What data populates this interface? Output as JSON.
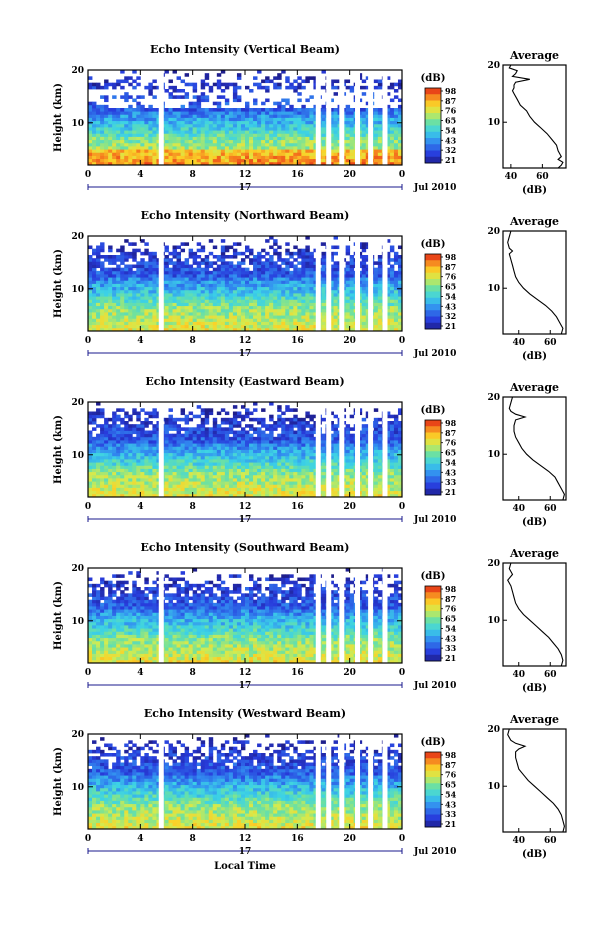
{
  "chart_data": [
    {
      "type": "heatmap",
      "title": "Echo Intensity (Vertical Beam)",
      "xlabel": "",
      "ylabel": "Height (km)",
      "xlim": [
        0,
        24
      ],
      "ylim": [
        2,
        20
      ],
      "x_ticks": [
        "0",
        "4",
        "8",
        "12",
        "16",
        "20",
        "0"
      ],
      "y_ticks": [
        "20",
        "10"
      ],
      "day_label": "17",
      "date_label": "Jul 2010",
      "colorbar": {
        "unit": "(dB)",
        "ticks": [
          "98",
          "87",
          "76",
          "65",
          "54",
          "43",
          "32",
          "21"
        ]
      },
      "gaps_local_time": [
        5.6,
        17.6,
        18.4,
        19.4,
        20.6,
        21.6,
        22.7
      ],
      "profile": {
        "title": "Average",
        "xlabel": "(dB)",
        "x_ticks": [
          "40",
          "60"
        ],
        "y_ticks": [
          "20",
          "10"
        ],
        "xlim": [
          35,
          75
        ],
        "ylim": [
          2,
          20
        ],
        "heights": [
          20,
          19.5,
          19,
          18.5,
          18,
          17.5,
          17,
          16.5,
          16,
          15.5,
          15,
          14,
          13,
          12,
          11,
          10,
          9,
          8,
          7,
          6,
          5,
          4,
          3.5,
          3,
          2.5,
          2
        ],
        "values": [
          40,
          39,
          44,
          43,
          41,
          52,
          43,
          42,
          42,
          41,
          42,
          44,
          46,
          50,
          52,
          55,
          59,
          63,
          66,
          69,
          70,
          72,
          70,
          73,
          72,
          70
        ]
      }
    },
    {
      "type": "heatmap",
      "title": "Echo Intensity (Northward Beam)",
      "xlabel": "",
      "ylabel": "Height (km)",
      "xlim": [
        0,
        24
      ],
      "ylim": [
        2,
        20
      ],
      "x_ticks": [
        "0",
        "4",
        "8",
        "12",
        "16",
        "20",
        "0"
      ],
      "y_ticks": [
        "20",
        "10"
      ],
      "day_label": "17",
      "date_label": "Jul 2010",
      "colorbar": {
        "unit": "(dB)",
        "ticks": [
          "98",
          "87",
          "76",
          "65",
          "54",
          "43",
          "32",
          "21"
        ]
      },
      "gaps_local_time": [
        5.6,
        17.6,
        18.4,
        19.4,
        20.6,
        21.6,
        22.7
      ],
      "profile": {
        "title": "Average",
        "xlabel": "(dB)",
        "x_ticks": [
          "40",
          "60"
        ],
        "y_ticks": [
          "20",
          "10"
        ],
        "xlim": [
          30,
          70
        ],
        "ylim": [
          2,
          20
        ],
        "heights": [
          20,
          19,
          18,
          17,
          16.5,
          16,
          15,
          14,
          13,
          12,
          11,
          10,
          9,
          8,
          7,
          6,
          5,
          4,
          3,
          2
        ],
        "values": [
          35,
          34,
          33,
          34,
          36,
          34,
          35,
          36,
          37,
          38,
          40,
          43,
          47,
          52,
          57,
          61,
          64,
          66,
          68,
          67
        ]
      }
    },
    {
      "type": "heatmap",
      "title": "Echo Intensity (Eastward Beam)",
      "xlabel": "",
      "ylabel": "Height (km)",
      "xlim": [
        0,
        24
      ],
      "ylim": [
        2,
        20
      ],
      "x_ticks": [
        "0",
        "4",
        "8",
        "12",
        "16",
        "20",
        "0"
      ],
      "y_ticks": [
        "20",
        "10"
      ],
      "day_label": "17",
      "date_label": "Jul 2010",
      "colorbar": {
        "unit": "(dB)",
        "ticks": [
          "98",
          "87",
          "76",
          "65",
          "54",
          "43",
          "33",
          "21"
        ]
      },
      "gaps_local_time": [
        5.6,
        17.6,
        18.4,
        19.4,
        20.6,
        21.6,
        22.7
      ],
      "profile": {
        "title": "Average",
        "xlabel": "(dB)",
        "x_ticks": [
          "40",
          "60"
        ],
        "y_ticks": [
          "20",
          "10"
        ],
        "xlim": [
          30,
          70
        ],
        "ylim": [
          2,
          20
        ],
        "heights": [
          20,
          19,
          18,
          17.5,
          17,
          16.5,
          16,
          15,
          14,
          13,
          12,
          11,
          10,
          9,
          8,
          7,
          6,
          5,
          4,
          3,
          2
        ],
        "values": [
          36,
          35,
          34,
          35,
          38,
          44,
          38,
          37,
          37,
          38,
          40,
          42,
          45,
          49,
          54,
          59,
          63,
          65,
          67,
          69,
          68
        ]
      }
    },
    {
      "type": "heatmap",
      "title": "Echo Intensity (Southward Beam)",
      "xlabel": "",
      "ylabel": "Height (km)",
      "xlim": [
        0,
        24
      ],
      "ylim": [
        2,
        20
      ],
      "x_ticks": [
        "0",
        "4",
        "8",
        "12",
        "16",
        "20",
        "0"
      ],
      "y_ticks": [
        "20",
        "10"
      ],
      "day_label": "17",
      "date_label": "Jul 2010",
      "colorbar": {
        "unit": "(dB)",
        "ticks": [
          "98",
          "87",
          "76",
          "65",
          "54",
          "43",
          "33",
          "21"
        ]
      },
      "gaps_local_time": [
        5.6,
        17.6,
        18.4,
        19.4,
        20.6,
        21.6,
        22.7
      ],
      "profile": {
        "title": "Average",
        "xlabel": "(dB)",
        "x_ticks": [
          "40",
          "60"
        ],
        "y_ticks": [
          "20",
          "10"
        ],
        "xlim": [
          30,
          70
        ],
        "ylim": [
          2,
          20
        ],
        "heights": [
          20,
          19,
          18,
          17,
          16,
          15,
          14,
          13,
          12,
          11,
          10,
          9,
          8,
          7,
          6,
          5,
          4,
          3,
          2
        ],
        "values": [
          35,
          34,
          36,
          33,
          35,
          36,
          37,
          38,
          40,
          43,
          47,
          51,
          55,
          59,
          62,
          65,
          67,
          68,
          67
        ]
      }
    },
    {
      "type": "heatmap",
      "title": "Echo Intensity (Westward Beam)",
      "xlabel": "Local Time",
      "ylabel": "Height (km)",
      "xlim": [
        0,
        24
      ],
      "ylim": [
        2,
        20
      ],
      "x_ticks": [
        "0",
        "4",
        "8",
        "12",
        "16",
        "20",
        "0"
      ],
      "y_ticks": [
        "20",
        "10"
      ],
      "day_label": "17",
      "date_label": "Jul 2010",
      "colorbar": {
        "unit": "(dB)",
        "ticks": [
          "98",
          "87",
          "76",
          "65",
          "54",
          "43",
          "33",
          "21"
        ]
      },
      "gaps_local_time": [
        5.6,
        17.6,
        18.4,
        19.4,
        20.6,
        21.6,
        22.7
      ],
      "profile": {
        "title": "Average",
        "xlabel": "(dB)",
        "x_ticks": [
          "40",
          "60"
        ],
        "y_ticks": [
          "20",
          "10"
        ],
        "xlim": [
          30,
          70
        ],
        "ylim": [
          2,
          20
        ],
        "heights": [
          20,
          19,
          18,
          17.5,
          17,
          16.5,
          16,
          15,
          14,
          13,
          12,
          11,
          10,
          9,
          8,
          7,
          6,
          5,
          4,
          3,
          2
        ],
        "values": [
          34,
          33,
          35,
          38,
          44,
          40,
          38,
          38,
          39,
          40,
          43,
          46,
          50,
          54,
          58,
          62,
          65,
          67,
          68,
          69,
          68
        ]
      }
    }
  ]
}
